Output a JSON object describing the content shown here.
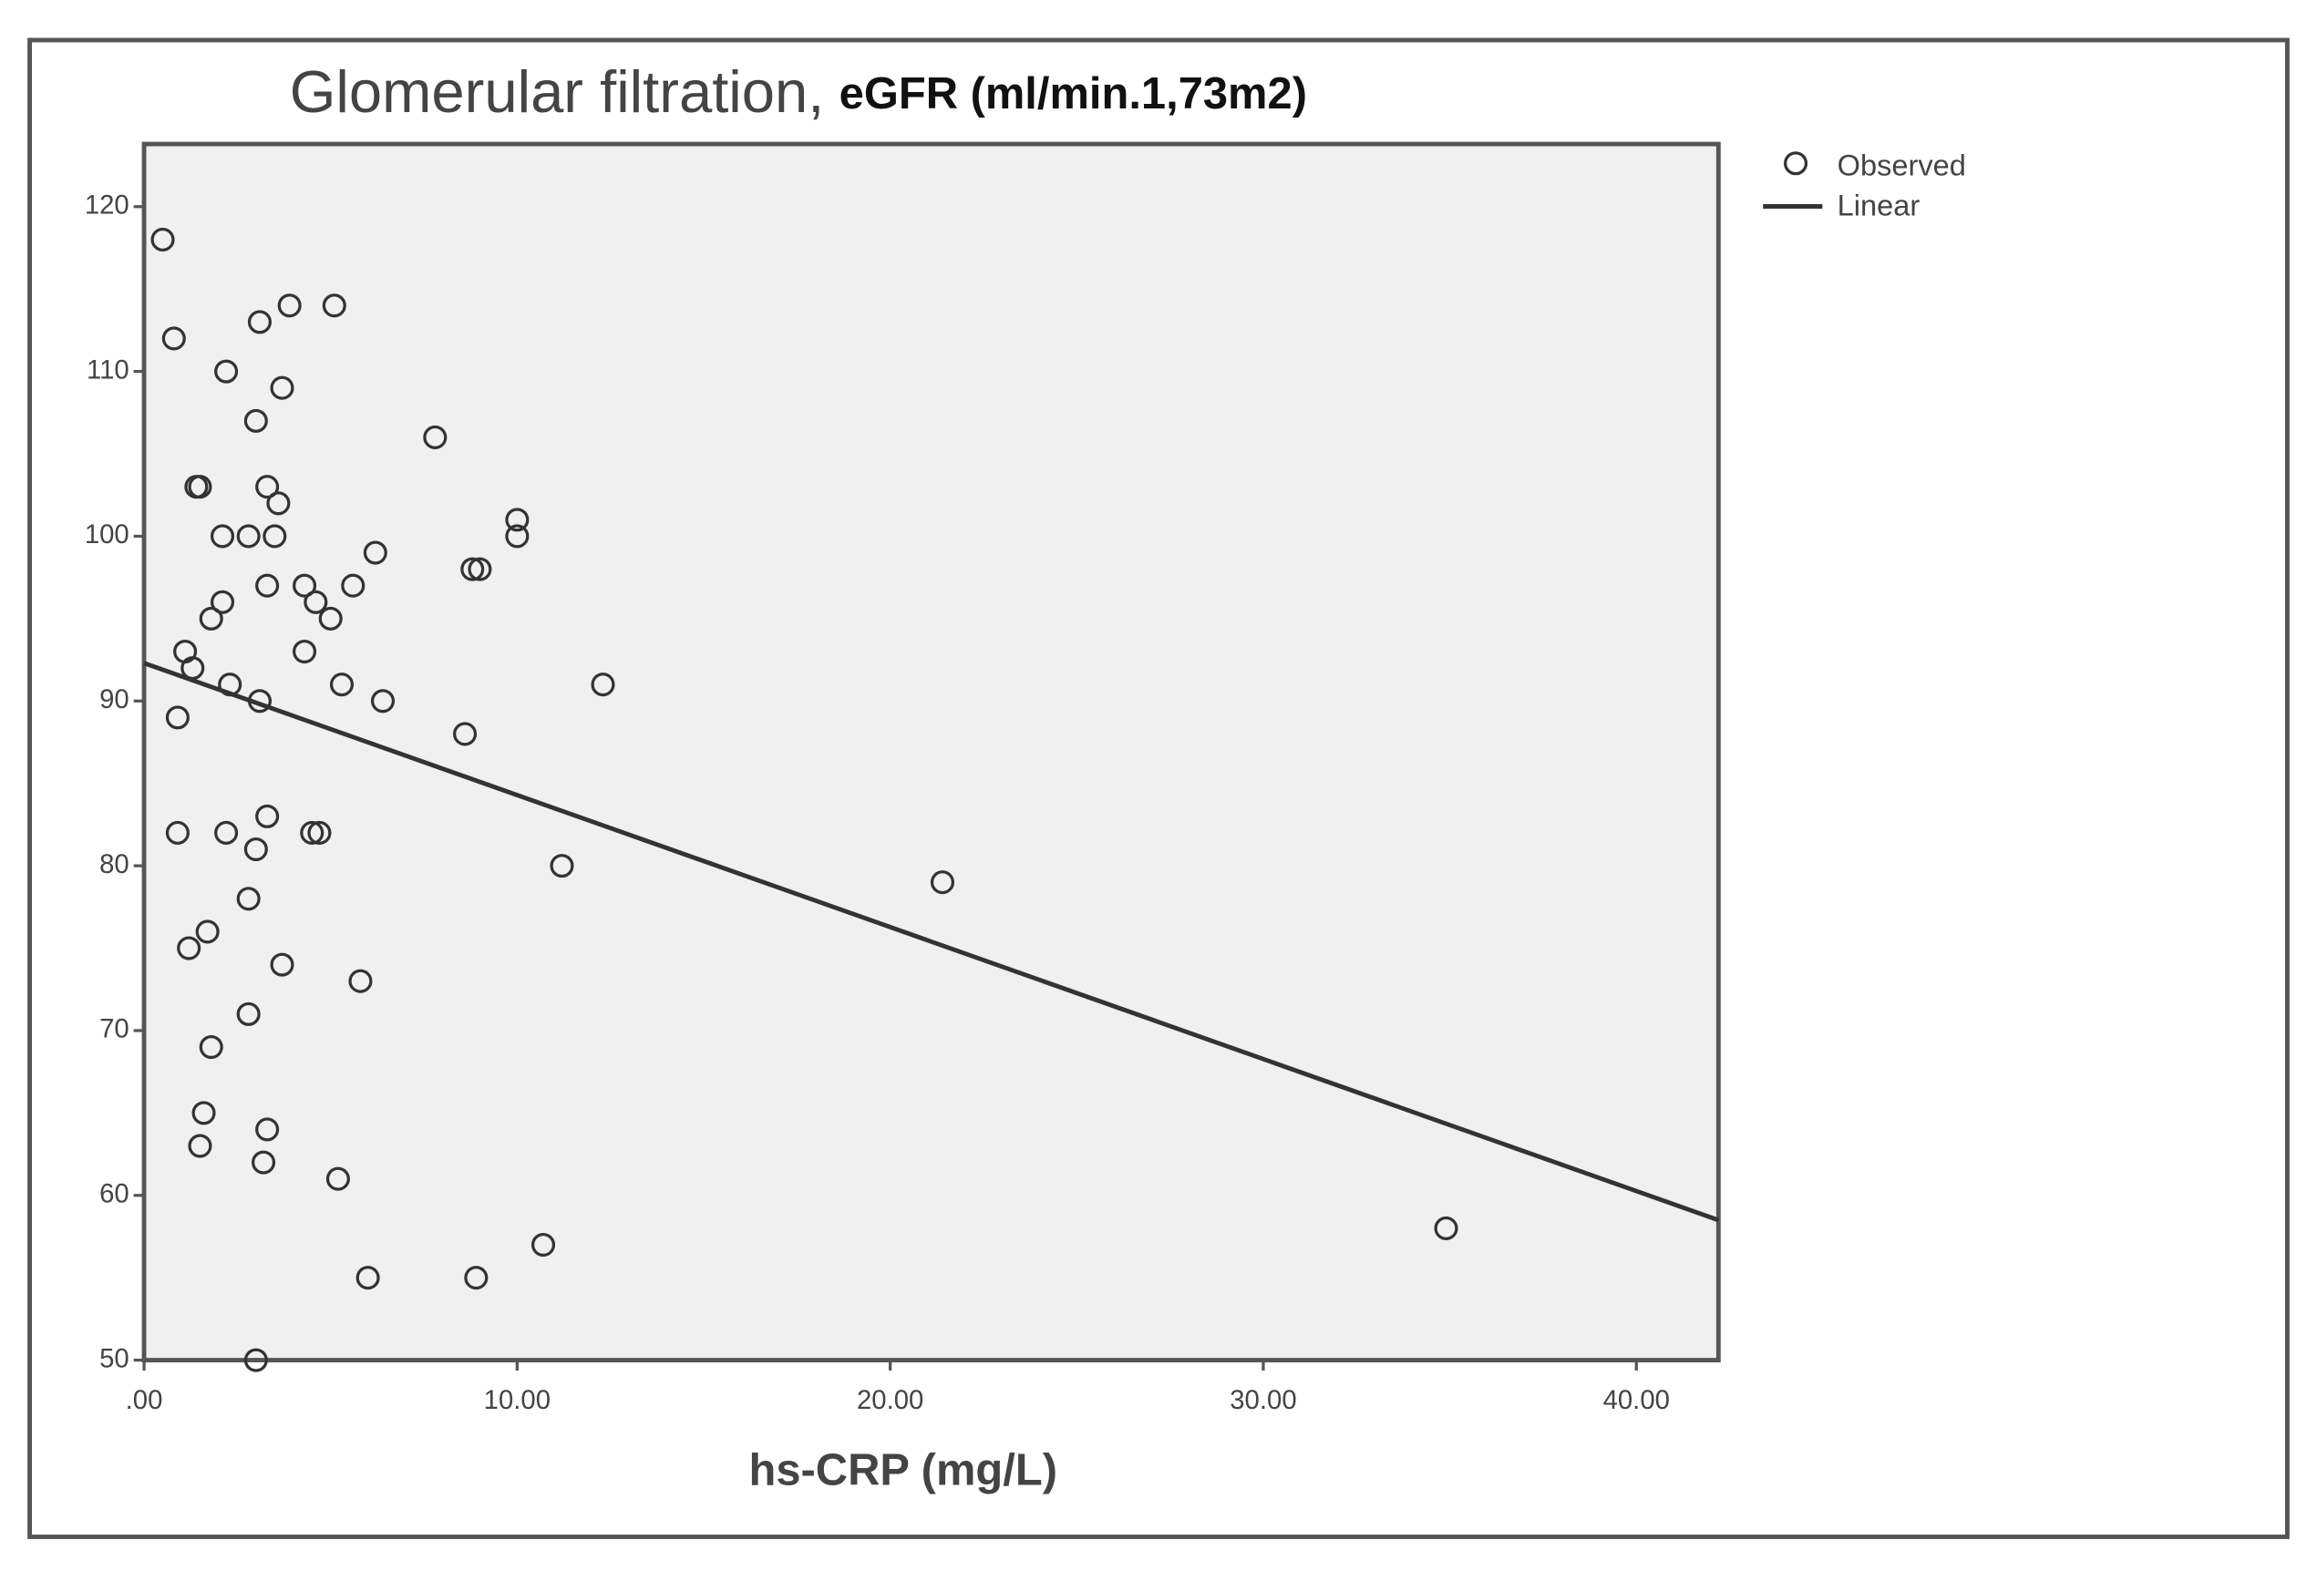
{
  "chart_data": {
    "type": "scatter",
    "title": "Glomerular filtration,",
    "subtitle": "eGFR (ml/min.1,73m2)",
    "x_label": "hs-CRP (mg/L)",
    "legend": "right",
    "xlim": [
      0,
      42.2
    ],
    "ylim": [
      50,
      123.8
    ],
    "xticks": [
      {
        "value": 0,
        "label": ".00"
      },
      {
        "value": 10,
        "label": "10.00"
      },
      {
        "value": 20,
        "label": "20.00"
      },
      {
        "value": 30,
        "label": "30.00"
      },
      {
        "value": 40,
        "label": "40.00"
      }
    ],
    "yticks": [
      50,
      60,
      70,
      80,
      90,
      100,
      110,
      120
    ],
    "series": [
      {
        "name": "Observed",
        "type": "scatter",
        "color": "#333333",
        "x": [
          0.5,
          0.8,
          3.1,
          3.9,
          5.1,
          2.2,
          3.7,
          3.0,
          7.8,
          1.4,
          1.5,
          3.3,
          3.6,
          2.1,
          2.8,
          3.5,
          10.0,
          10.0,
          6.2,
          8.8,
          9.0,
          3.3,
          4.3,
          5.6,
          2.1,
          4.6,
          1.8,
          5.0,
          1.1,
          4.3,
          1.3,
          2.3,
          5.3,
          12.3,
          3.1,
          6.4,
          0.9,
          8.6,
          3.3,
          0.9,
          2.2,
          4.5,
          4.7,
          3.0,
          11.2,
          21.4,
          2.8,
          1.7,
          1.2,
          3.7,
          5.8,
          2.8,
          1.8,
          1.6,
          3.3,
          1.5,
          3.2,
          5.2,
          10.7,
          34.9,
          6.0,
          8.9,
          3.0
        ],
        "values": [
          118,
          112,
          113,
          114,
          114,
          110,
          109,
          107,
          106,
          103,
          103,
          103,
          102,
          100,
          100,
          100,
          101,
          100,
          99,
          98,
          98,
          97,
          97,
          97,
          96,
          96,
          95,
          95,
          93,
          93,
          92,
          91,
          91,
          91,
          90,
          90,
          89,
          88,
          83,
          82,
          82,
          82,
          82,
          81,
          80,
          79,
          78,
          76,
          75,
          74,
          73,
          71,
          69,
          65,
          64,
          63,
          62,
          61,
          57,
          58,
          55,
          55,
          50
        ]
      },
      {
        "name": "Linear",
        "type": "line",
        "color": "#333333",
        "x": [
          0,
          42.2
        ],
        "values": [
          92.3,
          58.5
        ]
      }
    ]
  }
}
